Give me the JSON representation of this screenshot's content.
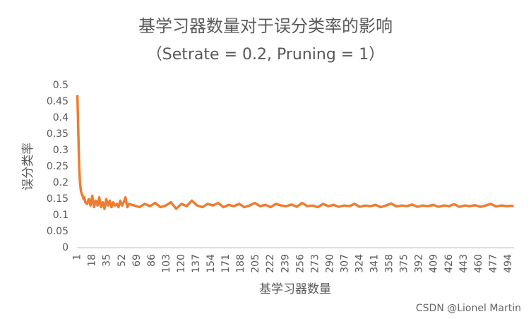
{
  "chart_data": {
    "type": "line",
    "title": "基学习器数量对于误分类率的影响",
    "subtitle": "（Setrate = 0.2, Pruning = 1）",
    "x_label": "基学习器数量",
    "y_label": "误分类率",
    "watermark": "CSDN @Lionel Martin",
    "xlim": [
      0.5,
      500.5
    ],
    "xticks": [
      1,
      18,
      35,
      52,
      69,
      86,
      103,
      120,
      137,
      154,
      171,
      188,
      205,
      222,
      239,
      256,
      273,
      290,
      307,
      324,
      341,
      358,
      375,
      392,
      409,
      426,
      443,
      460,
      477,
      494
    ],
    "ylim": [
      0,
      0.5
    ],
    "yticks": [
      0,
      0.05,
      0.1,
      0.15,
      0.2,
      0.25,
      0.3,
      0.35,
      0.4,
      0.45,
      0.5
    ],
    "grid": false,
    "series": [
      {
        "color": "#ed7d31",
        "x": [
          1,
          2,
          3,
          4,
          5,
          6,
          7,
          8,
          9,
          10,
          12,
          14,
          16,
          18,
          20,
          22,
          24,
          26,
          28,
          30,
          32,
          34,
          36,
          38,
          40,
          42,
          44,
          46,
          48,
          50,
          52,
          54,
          56,
          58,
          60,
          66,
          72,
          78,
          84,
          90,
          96,
          102,
          108,
          114,
          120,
          126,
          132,
          138,
          144,
          150,
          156,
          162,
          168,
          174,
          180,
          186,
          192,
          198,
          204,
          210,
          216,
          222,
          228,
          234,
          240,
          246,
          252,
          258,
          264,
          270,
          276,
          282,
          288,
          294,
          300,
          306,
          312,
          318,
          324,
          330,
          336,
          342,
          348,
          354,
          360,
          366,
          372,
          378,
          384,
          390,
          396,
          402,
          408,
          414,
          420,
          426,
          432,
          438,
          444,
          450,
          456,
          462,
          468,
          474,
          480,
          486,
          492,
          498,
          500
        ],
        "values": [
          0.47,
          0.36,
          0.25,
          0.2,
          0.175,
          0.165,
          0.16,
          0.15,
          0.155,
          0.14,
          0.135,
          0.15,
          0.13,
          0.16,
          0.125,
          0.145,
          0.13,
          0.155,
          0.125,
          0.14,
          0.12,
          0.15,
          0.13,
          0.145,
          0.125,
          0.14,
          0.13,
          0.135,
          0.125,
          0.145,
          0.13,
          0.14,
          0.155,
          0.125,
          0.135,
          0.13,
          0.125,
          0.135,
          0.128,
          0.138,
          0.125,
          0.13,
          0.14,
          0.12,
          0.135,
          0.128,
          0.145,
          0.13,
          0.125,
          0.135,
          0.13,
          0.138,
          0.125,
          0.132,
          0.128,
          0.135,
          0.125,
          0.13,
          0.138,
          0.128,
          0.132,
          0.125,
          0.135,
          0.13,
          0.128,
          0.133,
          0.126,
          0.138,
          0.128,
          0.13,
          0.125,
          0.135,
          0.128,
          0.132,
          0.126,
          0.13,
          0.128,
          0.135,
          0.126,
          0.13,
          0.128,
          0.132,
          0.125,
          0.13,
          0.136,
          0.127,
          0.13,
          0.128,
          0.133,
          0.126,
          0.13,
          0.128,
          0.132,
          0.126,
          0.13,
          0.128,
          0.134,
          0.126,
          0.13,
          0.128,
          0.131,
          0.126,
          0.13,
          0.135,
          0.127,
          0.13,
          0.128,
          0.129,
          0.128
        ]
      }
    ]
  }
}
